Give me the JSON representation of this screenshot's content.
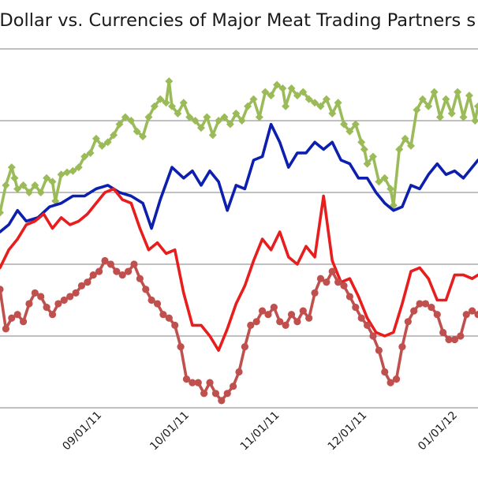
{
  "chart_data": {
    "type": "line",
    "title": "n Dollar vs. Currencies of Major Meat Trading Partners s",
    "xlabel": "",
    "ylabel": "",
    "ylim": [
      0,
      5
    ],
    "grid": "horizontal",
    "x_range": [
      "2011-07-28",
      "2012-01-08"
    ],
    "x_ticks": [
      {
        "date": "2011-09-01",
        "label": "09/01/11"
      },
      {
        "date": "2011-10-01",
        "label": "10/01/11"
      },
      {
        "date": "2011-11-01",
        "label": "11/01/11"
      },
      {
        "date": "2011-12-01",
        "label": "12/01/11"
      },
      {
        "date": "2012-01-01",
        "label": "01/01/12"
      }
    ],
    "series": [
      {
        "color": "#9bbb59",
        "marker": "diamond",
        "points": [
          [
            "2011-07-28",
            2.72
          ],
          [
            "2011-07-30",
            3.1
          ],
          [
            "2011-08-01",
            3.35
          ],
          [
            "2011-08-02",
            3.2
          ],
          [
            "2011-08-03",
            3.05
          ],
          [
            "2011-08-05",
            3.1
          ],
          [
            "2011-08-07",
            3.0
          ],
          [
            "2011-08-09",
            3.1
          ],
          [
            "2011-08-11",
            3.0
          ],
          [
            "2011-08-13",
            3.2
          ],
          [
            "2011-08-15",
            3.15
          ],
          [
            "2011-08-16",
            2.88
          ],
          [
            "2011-08-18",
            3.25
          ],
          [
            "2011-08-20",
            3.28
          ],
          [
            "2011-08-22",
            3.3
          ],
          [
            "2011-08-24",
            3.35
          ],
          [
            "2011-08-26",
            3.5
          ],
          [
            "2011-08-28",
            3.55
          ],
          [
            "2011-08-30",
            3.75
          ],
          [
            "2011-09-01",
            3.65
          ],
          [
            "2011-09-03",
            3.7
          ],
          [
            "2011-09-05",
            3.8
          ],
          [
            "2011-09-07",
            3.95
          ],
          [
            "2011-09-09",
            4.05
          ],
          [
            "2011-09-11",
            4.0
          ],
          [
            "2011-09-13",
            3.85
          ],
          [
            "2011-09-15",
            3.78
          ],
          [
            "2011-09-17",
            4.05
          ],
          [
            "2011-09-19",
            4.2
          ],
          [
            "2011-09-21",
            4.3
          ],
          [
            "2011-09-23",
            4.25
          ],
          [
            "2011-09-24",
            4.55
          ],
          [
            "2011-09-25",
            4.2
          ],
          [
            "2011-09-27",
            4.1
          ],
          [
            "2011-09-29",
            4.25
          ],
          [
            "2011-10-01",
            4.05
          ],
          [
            "2011-10-03",
            4.0
          ],
          [
            "2011-10-05",
            3.9
          ],
          [
            "2011-10-07",
            4.05
          ],
          [
            "2011-10-09",
            3.8
          ],
          [
            "2011-10-11",
            4.0
          ],
          [
            "2011-10-13",
            4.05
          ],
          [
            "2011-10-15",
            3.95
          ],
          [
            "2011-10-17",
            4.1
          ],
          [
            "2011-10-19",
            4.0
          ],
          [
            "2011-10-21",
            4.2
          ],
          [
            "2011-10-23",
            4.3
          ],
          [
            "2011-10-25",
            4.05
          ],
          [
            "2011-10-27",
            4.4
          ],
          [
            "2011-10-29",
            4.35
          ],
          [
            "2011-10-31",
            4.5
          ],
          [
            "2011-11-02",
            4.45
          ],
          [
            "2011-11-03",
            4.2
          ],
          [
            "2011-11-05",
            4.45
          ],
          [
            "2011-11-07",
            4.35
          ],
          [
            "2011-11-09",
            4.4
          ],
          [
            "2011-11-11",
            4.3
          ],
          [
            "2011-11-13",
            4.25
          ],
          [
            "2011-11-15",
            4.2
          ],
          [
            "2011-11-17",
            4.3
          ],
          [
            "2011-11-19",
            4.1
          ],
          [
            "2011-11-21",
            4.25
          ],
          [
            "2011-11-23",
            3.95
          ],
          [
            "2011-11-25",
            3.85
          ],
          [
            "2011-11-27",
            3.95
          ],
          [
            "2011-11-29",
            3.7
          ],
          [
            "2011-11-30",
            3.6
          ],
          [
            "2011-12-01",
            3.4
          ],
          [
            "2011-12-03",
            3.5
          ],
          [
            "2011-12-05",
            3.15
          ],
          [
            "2011-12-07",
            3.2
          ],
          [
            "2011-12-09",
            3.05
          ],
          [
            "2011-12-10",
            2.82
          ],
          [
            "2011-12-12",
            3.6
          ],
          [
            "2011-12-14",
            3.75
          ],
          [
            "2011-12-16",
            3.65
          ],
          [
            "2011-12-18",
            4.15
          ],
          [
            "2011-12-20",
            4.3
          ],
          [
            "2011-12-22",
            4.2
          ],
          [
            "2011-12-24",
            4.4
          ],
          [
            "2011-12-26",
            4.05
          ],
          [
            "2011-12-28",
            4.3
          ],
          [
            "2011-12-30",
            4.1
          ],
          [
            "2012-01-01",
            4.4
          ],
          [
            "2012-01-03",
            4.05
          ],
          [
            "2012-01-05",
            4.35
          ],
          [
            "2012-01-07",
            4.0
          ],
          [
            "2012-01-08",
            4.2
          ]
        ]
      },
      {
        "color": "#0c1fae",
        "marker": "none",
        "points": [
          [
            "2011-07-28",
            2.45
          ],
          [
            "2011-07-31",
            2.55
          ],
          [
            "2011-08-03",
            2.75
          ],
          [
            "2011-08-06",
            2.6
          ],
          [
            "2011-08-10",
            2.65
          ],
          [
            "2011-08-14",
            2.8
          ],
          [
            "2011-08-18",
            2.85
          ],
          [
            "2011-08-22",
            2.95
          ],
          [
            "2011-08-26",
            2.95
          ],
          [
            "2011-08-30",
            3.05
          ],
          [
            "2011-09-03",
            3.1
          ],
          [
            "2011-09-07",
            3.0
          ],
          [
            "2011-09-11",
            2.95
          ],
          [
            "2011-09-15",
            2.85
          ],
          [
            "2011-09-18",
            2.5
          ],
          [
            "2011-09-21",
            2.9
          ],
          [
            "2011-09-25",
            3.35
          ],
          [
            "2011-09-29",
            3.2
          ],
          [
            "2011-10-02",
            3.3
          ],
          [
            "2011-10-05",
            3.1
          ],
          [
            "2011-10-08",
            3.3
          ],
          [
            "2011-10-11",
            3.15
          ],
          [
            "2011-10-14",
            2.75
          ],
          [
            "2011-10-17",
            3.1
          ],
          [
            "2011-10-20",
            3.05
          ],
          [
            "2011-10-23",
            3.45
          ],
          [
            "2011-10-26",
            3.5
          ],
          [
            "2011-10-29",
            3.95
          ],
          [
            "2011-11-01",
            3.7
          ],
          [
            "2011-11-04",
            3.35
          ],
          [
            "2011-11-07",
            3.55
          ],
          [
            "2011-11-10",
            3.55
          ],
          [
            "2011-11-13",
            3.7
          ],
          [
            "2011-11-16",
            3.6
          ],
          [
            "2011-11-19",
            3.7
          ],
          [
            "2011-11-22",
            3.45
          ],
          [
            "2011-11-25",
            3.4
          ],
          [
            "2011-11-28",
            3.2
          ],
          [
            "2011-12-01",
            3.2
          ],
          [
            "2011-12-04",
            3.0
          ],
          [
            "2011-12-07",
            2.85
          ],
          [
            "2011-12-10",
            2.75
          ],
          [
            "2011-12-13",
            2.8
          ],
          [
            "2011-12-16",
            3.1
          ],
          [
            "2011-12-19",
            3.05
          ],
          [
            "2011-12-22",
            3.25
          ],
          [
            "2011-12-25",
            3.4
          ],
          [
            "2011-12-28",
            3.25
          ],
          [
            "2011-12-31",
            3.3
          ],
          [
            "2012-01-03",
            3.2
          ],
          [
            "2012-01-06",
            3.35
          ],
          [
            "2012-01-08",
            3.45
          ]
        ]
      },
      {
        "color": "#e81d1d",
        "marker": "none",
        "points": [
          [
            "2011-07-28",
            1.95
          ],
          [
            "2011-07-31",
            2.2
          ],
          [
            "2011-08-03",
            2.35
          ],
          [
            "2011-08-06",
            2.55
          ],
          [
            "2011-08-09",
            2.6
          ],
          [
            "2011-08-12",
            2.7
          ],
          [
            "2011-08-15",
            2.5
          ],
          [
            "2011-08-18",
            2.65
          ],
          [
            "2011-08-21",
            2.55
          ],
          [
            "2011-08-24",
            2.6
          ],
          [
            "2011-08-27",
            2.7
          ],
          [
            "2011-08-30",
            2.85
          ],
          [
            "2011-09-02",
            3.0
          ],
          [
            "2011-09-05",
            3.05
          ],
          [
            "2011-09-08",
            2.9
          ],
          [
            "2011-09-11",
            2.85
          ],
          [
            "2011-09-14",
            2.5
          ],
          [
            "2011-09-17",
            2.2
          ],
          [
            "2011-09-20",
            2.3
          ],
          [
            "2011-09-23",
            2.15
          ],
          [
            "2011-09-26",
            2.2
          ],
          [
            "2011-09-29",
            1.6
          ],
          [
            "2011-10-02",
            1.15
          ],
          [
            "2011-10-05",
            1.15
          ],
          [
            "2011-10-08",
            1.0
          ],
          [
            "2011-10-11",
            0.8
          ],
          [
            "2011-10-14",
            1.1
          ],
          [
            "2011-10-17",
            1.45
          ],
          [
            "2011-10-20",
            1.7
          ],
          [
            "2011-10-23",
            2.05
          ],
          [
            "2011-10-26",
            2.35
          ],
          [
            "2011-10-29",
            2.2
          ],
          [
            "2011-11-01",
            2.45
          ],
          [
            "2011-11-04",
            2.1
          ],
          [
            "2011-11-07",
            2.0
          ],
          [
            "2011-11-10",
            2.25
          ],
          [
            "2011-11-13",
            2.1
          ],
          [
            "2011-11-16",
            2.95
          ],
          [
            "2011-11-19",
            2.05
          ],
          [
            "2011-11-22",
            1.75
          ],
          [
            "2011-11-25",
            1.8
          ],
          [
            "2011-11-28",
            1.55
          ],
          [
            "2011-12-01",
            1.25
          ],
          [
            "2011-12-04",
            1.05
          ],
          [
            "2011-12-07",
            1.0
          ],
          [
            "2011-12-10",
            1.05
          ],
          [
            "2011-12-13",
            1.45
          ],
          [
            "2011-12-16",
            1.9
          ],
          [
            "2011-12-19",
            1.95
          ],
          [
            "2011-12-22",
            1.8
          ],
          [
            "2011-12-25",
            1.5
          ],
          [
            "2011-12-28",
            1.5
          ],
          [
            "2011-12-31",
            1.85
          ],
          [
            "2012-01-03",
            1.85
          ],
          [
            "2012-01-06",
            1.8
          ],
          [
            "2012-01-08",
            1.85
          ]
        ]
      },
      {
        "color": "#c0504d",
        "marker": "circle",
        "points": [
          [
            "2011-07-28",
            1.65
          ],
          [
            "2011-07-30",
            1.1
          ],
          [
            "2011-08-01",
            1.25
          ],
          [
            "2011-08-03",
            1.3
          ],
          [
            "2011-08-05",
            1.2
          ],
          [
            "2011-08-07",
            1.45
          ],
          [
            "2011-08-09",
            1.6
          ],
          [
            "2011-08-11",
            1.55
          ],
          [
            "2011-08-13",
            1.4
          ],
          [
            "2011-08-15",
            1.3
          ],
          [
            "2011-08-17",
            1.45
          ],
          [
            "2011-08-19",
            1.5
          ],
          [
            "2011-08-21",
            1.55
          ],
          [
            "2011-08-23",
            1.6
          ],
          [
            "2011-08-25",
            1.7
          ],
          [
            "2011-08-27",
            1.75
          ],
          [
            "2011-08-29",
            1.85
          ],
          [
            "2011-08-31",
            1.9
          ],
          [
            "2011-09-02",
            2.05
          ],
          [
            "2011-09-04",
            2.0
          ],
          [
            "2011-09-06",
            1.9
          ],
          [
            "2011-09-08",
            1.85
          ],
          [
            "2011-09-10",
            1.9
          ],
          [
            "2011-09-12",
            2.0
          ],
          [
            "2011-09-14",
            1.8
          ],
          [
            "2011-09-16",
            1.65
          ],
          [
            "2011-09-18",
            1.5
          ],
          [
            "2011-09-20",
            1.45
          ],
          [
            "2011-09-22",
            1.3
          ],
          [
            "2011-09-24",
            1.25
          ],
          [
            "2011-09-26",
            1.15
          ],
          [
            "2011-09-28",
            0.85
          ],
          [
            "2011-09-30",
            0.4
          ],
          [
            "2011-10-02",
            0.35
          ],
          [
            "2011-10-04",
            0.35
          ],
          [
            "2011-10-06",
            0.2
          ],
          [
            "2011-10-08",
            0.35
          ],
          [
            "2011-10-10",
            0.2
          ],
          [
            "2011-10-12",
            0.1
          ],
          [
            "2011-10-14",
            0.2
          ],
          [
            "2011-10-16",
            0.3
          ],
          [
            "2011-10-18",
            0.5
          ],
          [
            "2011-10-20",
            0.85
          ],
          [
            "2011-10-22",
            1.15
          ],
          [
            "2011-10-24",
            1.2
          ],
          [
            "2011-10-26",
            1.35
          ],
          [
            "2011-10-28",
            1.3
          ],
          [
            "2011-10-30",
            1.4
          ],
          [
            "2011-11-01",
            1.2
          ],
          [
            "2011-11-03",
            1.15
          ],
          [
            "2011-11-05",
            1.3
          ],
          [
            "2011-11-07",
            1.2
          ],
          [
            "2011-11-09",
            1.35
          ],
          [
            "2011-11-11",
            1.25
          ],
          [
            "2011-11-13",
            1.6
          ],
          [
            "2011-11-15",
            1.8
          ],
          [
            "2011-11-17",
            1.75
          ],
          [
            "2011-11-19",
            1.9
          ],
          [
            "2011-11-21",
            1.75
          ],
          [
            "2011-11-23",
            1.7
          ],
          [
            "2011-11-25",
            1.55
          ],
          [
            "2011-11-27",
            1.4
          ],
          [
            "2011-11-29",
            1.25
          ],
          [
            "2011-12-01",
            1.15
          ],
          [
            "2011-12-03",
            1.0
          ],
          [
            "2011-12-05",
            0.8
          ],
          [
            "2011-12-07",
            0.5
          ],
          [
            "2011-12-09",
            0.35
          ],
          [
            "2011-12-11",
            0.4
          ],
          [
            "2011-12-13",
            0.85
          ],
          [
            "2011-12-15",
            1.2
          ],
          [
            "2011-12-17",
            1.35
          ],
          [
            "2011-12-19",
            1.45
          ],
          [
            "2011-12-21",
            1.45
          ],
          [
            "2011-12-23",
            1.4
          ],
          [
            "2011-12-25",
            1.3
          ],
          [
            "2011-12-27",
            1.05
          ],
          [
            "2011-12-29",
            0.95
          ],
          [
            "2011-12-31",
            0.95
          ],
          [
            "2012-01-02",
            1.0
          ],
          [
            "2012-01-04",
            1.3
          ],
          [
            "2012-01-06",
            1.35
          ],
          [
            "2012-01-08",
            1.3
          ]
        ]
      }
    ]
  }
}
